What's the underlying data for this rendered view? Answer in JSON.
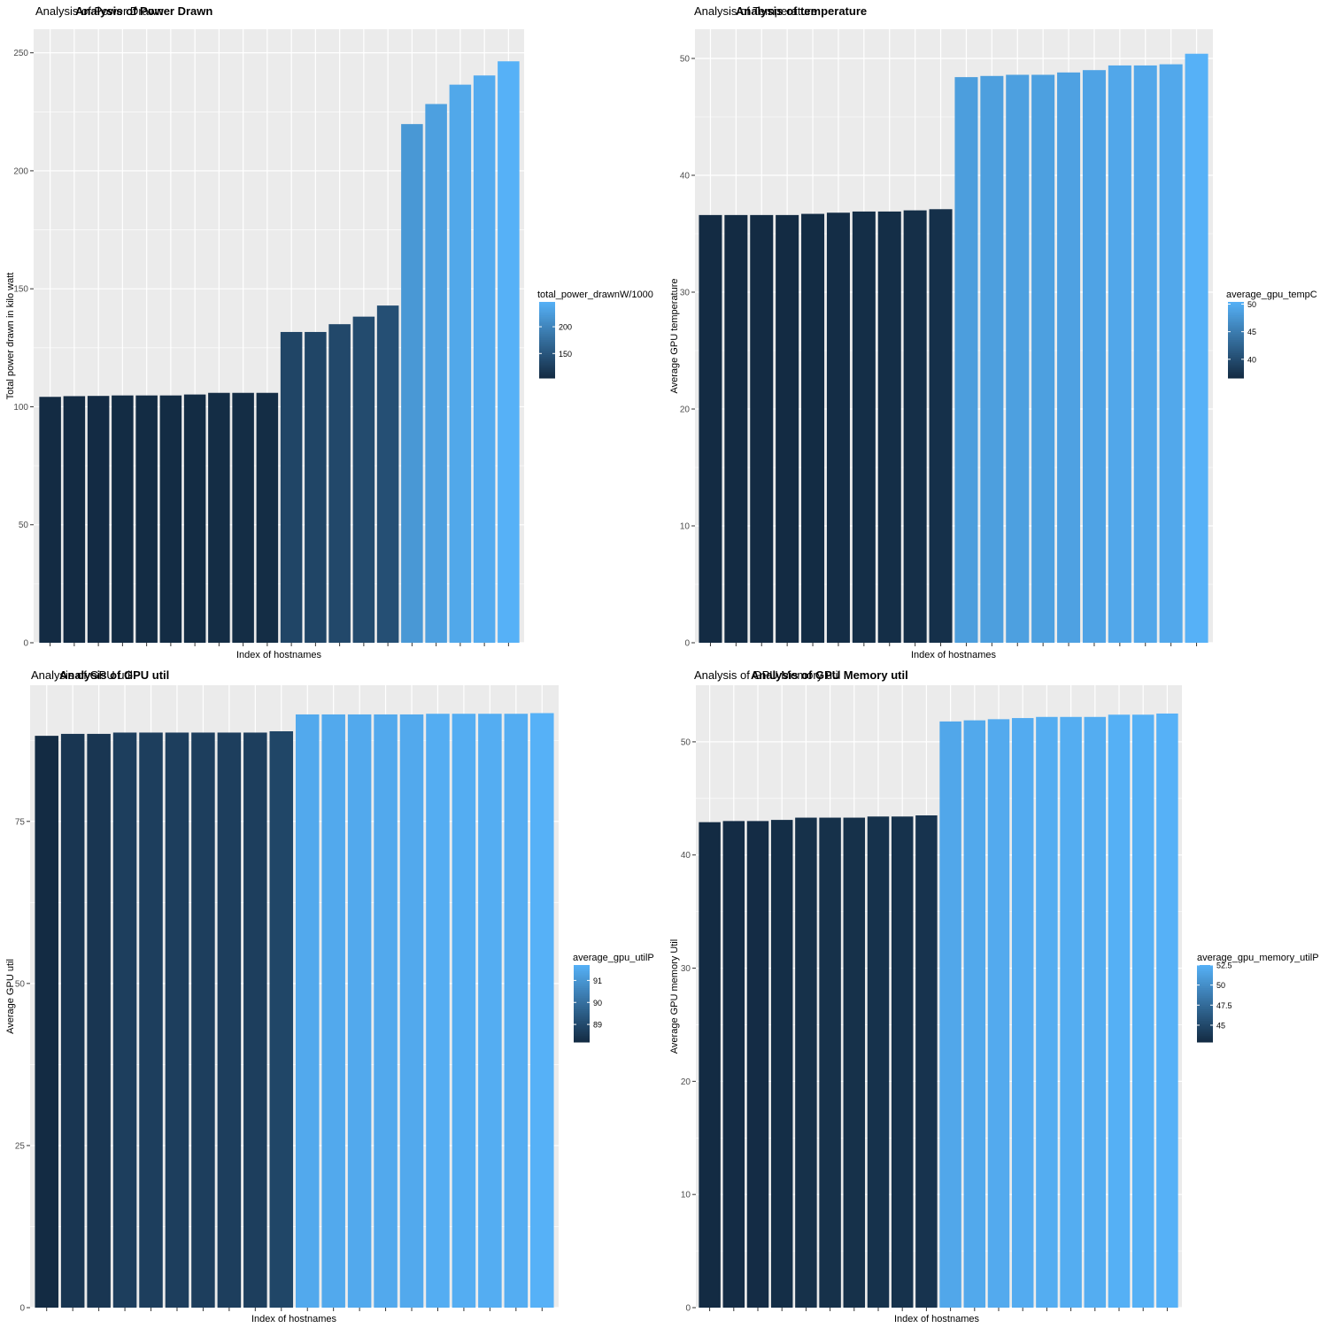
{
  "chart_data": [
    {
      "type": "bar",
      "title": "Analysis of Power Drawn",
      "subtitle": "Analysis of Power Drawn",
      "xlabel": "Index of hostnames",
      "ylabel": "Total power drawn in kilo watt",
      "ylim": [
        0,
        260
      ],
      "y_ticks": [
        0,
        50,
        100,
        150,
        200,
        250
      ],
      "grid": true,
      "values": [
        104.2,
        104.5,
        104.6,
        104.8,
        104.8,
        104.8,
        105.2,
        105.9,
        105.9,
        105.9,
        131.7,
        131.7,
        135.0,
        138.2,
        142.9,
        219.8,
        228.3,
        236.5,
        240.4,
        246.4
      ],
      "legend": {
        "title": "total_power_drawnW/1000",
        "placement": "right",
        "ticks": [
          150,
          200
        ],
        "min": 104.2,
        "max": 246.4
      },
      "colors": {
        "low": "#132b43",
        "high": "#56b1f7",
        "panel": "#ebebeb",
        "grid": "#ffffff"
      }
    },
    {
      "type": "bar",
      "title": "Analysis of temperature",
      "subtitle": "Analysis of Temperature",
      "xlabel": "Index of hostnames",
      "ylabel": "Average GPU temperature",
      "ylim": [
        0,
        52.5
      ],
      "y_ticks": [
        0,
        10,
        20,
        30,
        40,
        50
      ],
      "grid": true,
      "values": [
        36.6,
        36.6,
        36.6,
        36.6,
        36.7,
        36.8,
        36.9,
        36.9,
        37.0,
        37.1,
        48.4,
        48.5,
        48.6,
        48.6,
        48.8,
        49.0,
        49.4,
        49.4,
        49.5,
        50.4
      ],
      "legend": {
        "title": "average_gpu_tempC",
        "placement": "right",
        "ticks": [
          40,
          45,
          50
        ],
        "min": 36.6,
        "max": 50.4
      },
      "colors": {
        "low": "#132b43",
        "high": "#56b1f7",
        "panel": "#ebebeb",
        "grid": "#ffffff"
      }
    },
    {
      "type": "bar",
      "title": "Analysis of GPU util",
      "subtitle": "Analysis of GPU util",
      "xlabel": "Index of hostnames",
      "ylabel": "Average GPU util",
      "ylim": [
        0,
        96
      ],
      "y_ticks": [
        0,
        25,
        50,
        75
      ],
      "grid": true,
      "values": [
        88.2,
        88.5,
        88.5,
        88.7,
        88.7,
        88.7,
        88.7,
        88.7,
        88.7,
        88.9,
        91.5,
        91.5,
        91.5,
        91.5,
        91.5,
        91.6,
        91.6,
        91.6,
        91.6,
        91.7
      ],
      "legend": {
        "title": "average_gpu_utilP",
        "placement": "right",
        "ticks": [
          89,
          90,
          91
        ],
        "min": 88.2,
        "max": 91.7
      },
      "colors": {
        "low": "#132b43",
        "high": "#56b1f7",
        "panel": "#ebebeb",
        "grid": "#ffffff"
      }
    },
    {
      "type": "bar",
      "title": "Analysis of GPU Memory util",
      "subtitle": "Analysis of GPU Memory util",
      "xlabel": "Index of hostnames",
      "ylabel": "Average GPU memory Util",
      "ylim": [
        0,
        55
      ],
      "y_ticks": [
        0,
        10,
        20,
        30,
        40,
        50
      ],
      "grid": true,
      "values": [
        42.9,
        43.0,
        43.0,
        43.1,
        43.3,
        43.3,
        43.3,
        43.4,
        43.4,
        43.5,
        51.8,
        51.9,
        52.0,
        52.1,
        52.2,
        52.2,
        52.2,
        52.4,
        52.4,
        52.5
      ],
      "legend": {
        "title": "average_gpu_memory_utilP",
        "placement": "right",
        "ticks": [
          45.0,
          47.5,
          50.0,
          52.5
        ],
        "min": 42.9,
        "max": 52.5
      },
      "colors": {
        "low": "#132b43",
        "high": "#56b1f7",
        "panel": "#ebebeb",
        "grid": "#ffffff"
      }
    }
  ]
}
